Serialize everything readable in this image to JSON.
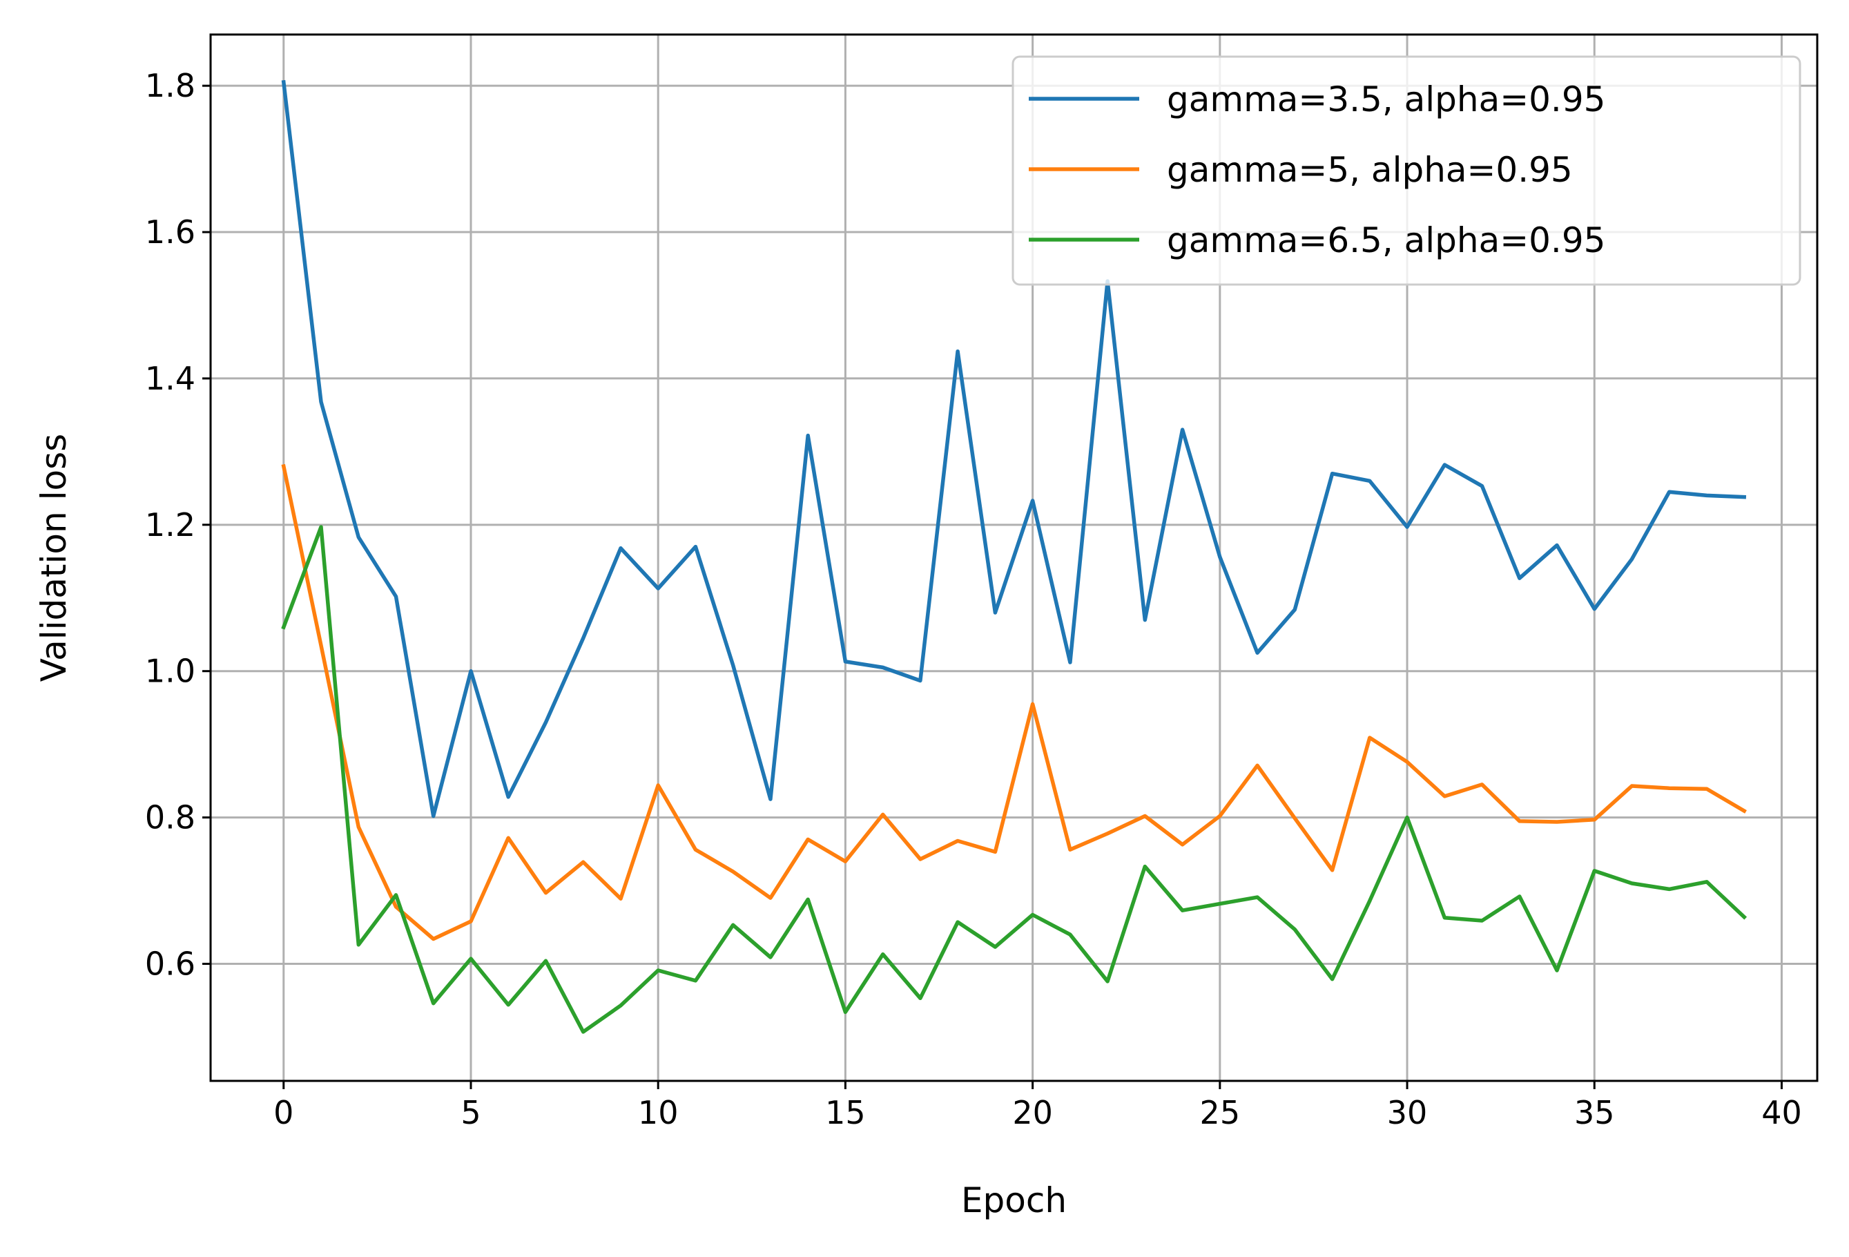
{
  "chart_data": {
    "type": "line",
    "xlabel": "Epoch",
    "ylabel": "Validation loss",
    "xlim": [
      -1.95,
      40.95
    ],
    "ylim": [
      0.44,
      1.87
    ],
    "xticks": [
      0,
      5,
      10,
      15,
      20,
      25,
      30,
      35,
      40
    ],
    "yticks": [
      0.6,
      0.8,
      1.0,
      1.2,
      1.4,
      1.6,
      1.8
    ],
    "xtick_labels": [
      "0",
      "5",
      "10",
      "15",
      "20",
      "25",
      "30",
      "35",
      "40"
    ],
    "ytick_labels": [
      "0.6",
      "0.8",
      "1.0",
      "1.2",
      "1.4",
      "1.6",
      "1.8"
    ],
    "grid": true,
    "legend_position": "upper right",
    "x": [
      0,
      1,
      2,
      3,
      4,
      5,
      6,
      7,
      8,
      9,
      10,
      11,
      12,
      13,
      14,
      15,
      16,
      17,
      18,
      19,
      20,
      21,
      22,
      23,
      24,
      25,
      26,
      27,
      28,
      29,
      30,
      31,
      32,
      33,
      34,
      35,
      36,
      37,
      38,
      39
    ],
    "series": [
      {
        "name": "gamma=3.5, alpha=0.95",
        "color": "#1f77b4",
        "values": [
          1.805,
          1.368,
          1.183,
          1.102,
          0.802,
          1.0,
          0.828,
          0.93,
          1.045,
          1.168,
          1.113,
          1.17,
          1.008,
          0.825,
          1.322,
          1.013,
          1.005,
          0.987,
          1.437,
          1.08,
          1.233,
          1.012,
          1.533,
          1.07,
          1.33,
          1.156,
          1.025,
          1.084,
          1.27,
          1.26,
          1.197,
          1.282,
          1.253,
          1.127,
          1.172,
          1.085,
          1.153,
          1.245,
          1.24,
          1.238
        ]
      },
      {
        "name": "gamma=5, alpha=0.95",
        "color": "#ff7f0e",
        "values": [
          1.28,
          1.035,
          0.787,
          0.678,
          0.634,
          0.658,
          0.772,
          0.697,
          0.739,
          0.689,
          0.844,
          0.756,
          0.726,
          0.69,
          0.77,
          0.74,
          0.804,
          0.743,
          0.768,
          0.753,
          0.955,
          0.756,
          0.778,
          0.802,
          0.763,
          0.802,
          0.871,
          0.799,
          0.728,
          0.909,
          0.876,
          0.829,
          0.845,
          0.795,
          0.794,
          0.797,
          0.843,
          0.84,
          0.839,
          0.809
        ]
      },
      {
        "name": "gamma=6.5, alpha=0.95",
        "color": "#2ca02c",
        "values": [
          1.06,
          1.197,
          0.626,
          0.694,
          0.546,
          0.607,
          0.544,
          0.604,
          0.507,
          0.543,
          0.591,
          0.577,
          0.653,
          0.609,
          0.688,
          0.534,
          0.613,
          0.553,
          0.657,
          0.623,
          0.667,
          0.64,
          0.576,
          0.733,
          0.673,
          0.682,
          0.691,
          0.647,
          0.579,
          0.686,
          0.8,
          0.663,
          0.659,
          0.692,
          0.591,
          0.727,
          0.71,
          0.702,
          0.712,
          0.664
        ]
      }
    ]
  }
}
